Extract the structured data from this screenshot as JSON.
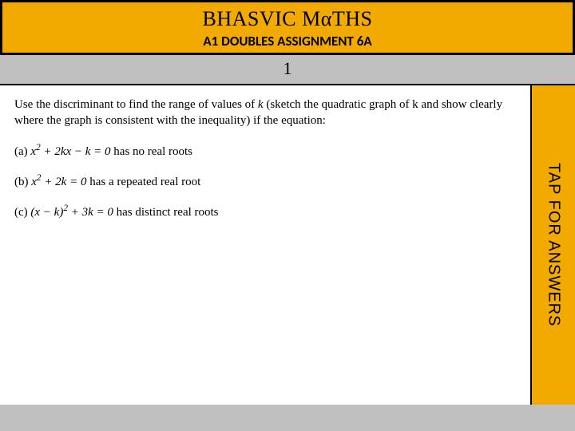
{
  "header": {
    "title": "BHASVIC MαTHS",
    "subtitle": "A1 DOUBLES ASSIGNMENT 6A",
    "background_color": "#f2a900",
    "border_color": "#000000",
    "title_fontsize": 26,
    "subtitle_fontsize": 17
  },
  "question_number": "1",
  "page_background": "#c0c0c0",
  "content": {
    "background_color": "#ffffff",
    "intro": "Use the discriminant to find the range of values of k (sketch the quadratic graph of k and show clearly where the graph is consistent with the inequality) if the equation:",
    "parts": [
      {
        "label": "(a)",
        "equation": "x² + 2kx − k = 0",
        "condition": "has no real roots"
      },
      {
        "label": "(b)",
        "equation": "x² + 2k = 0",
        "condition": "has a repeated real root"
      },
      {
        "label": "(c)",
        "equation": "(x − k)² + 3k = 0",
        "condition": "has distinct real roots"
      }
    ],
    "fontsize": 15
  },
  "answers_tab": {
    "label": "TAP FOR ANSWERS",
    "background_color": "#f2a900",
    "fontsize": 20
  }
}
